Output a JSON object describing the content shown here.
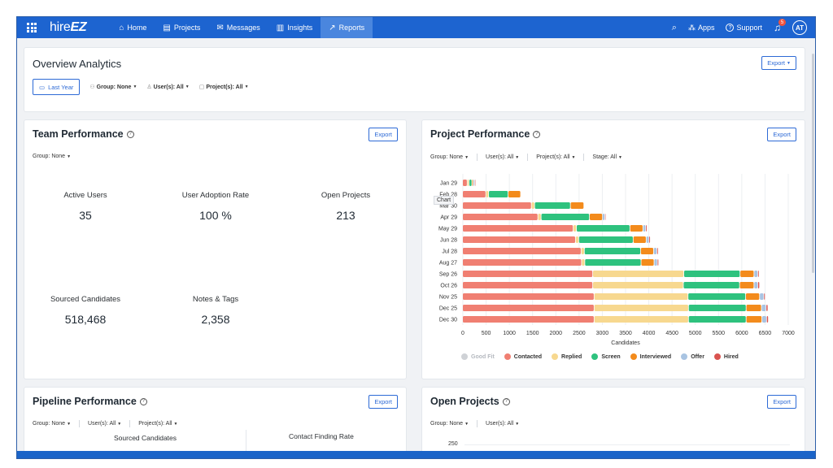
{
  "nav": {
    "logo_light": "hire",
    "logo_bold": "EZ",
    "items": [
      {
        "label": "Home",
        "icon": "home-icon",
        "glyph": "⌂",
        "active": false
      },
      {
        "label": "Projects",
        "icon": "briefcase-icon",
        "glyph": "▤",
        "active": false
      },
      {
        "label": "Messages",
        "icon": "mail-icon",
        "glyph": "✉",
        "active": false
      },
      {
        "label": "Insights",
        "icon": "bar-chart-icon",
        "glyph": "▥",
        "active": false
      },
      {
        "label": "Reports",
        "icon": "line-chart-icon",
        "glyph": "↗",
        "active": true
      }
    ],
    "apps_label": "Apps",
    "support_label": "Support",
    "notification_count": "5",
    "avatar_initials": "AT"
  },
  "overview": {
    "title": "Overview Analytics",
    "export_label": "Export",
    "date_button": "Last Year",
    "group_filter": "Group: None",
    "user_filter": "User(s): All",
    "project_filter": "Project(s): All"
  },
  "team_performance": {
    "title": "Team Performance",
    "export_label": "Export",
    "group_filter": "Group: None",
    "stats": [
      {
        "label": "Active Users",
        "value": "35"
      },
      {
        "label": "User Adoption Rate",
        "value": "100 %"
      },
      {
        "label": "Open Projects",
        "value": "213"
      },
      {
        "label": "Sourced Candidates",
        "value": "518,468"
      },
      {
        "label": "Notes & Tags",
        "value": "2,358"
      }
    ]
  },
  "project_performance": {
    "title": "Project Performance",
    "export_label": "Export",
    "filters": [
      "Group: None",
      "User(s): All",
      "Project(s): All",
      "Stage: All"
    ],
    "tooltip": "Chart"
  },
  "pipeline_performance": {
    "title": "Pipeline Performance",
    "export_label": "Export",
    "filters": [
      "Group: None",
      "User(s): All",
      "Project(s): All"
    ],
    "col1": "Sourced Candidates",
    "col2": "Contact Finding Rate"
  },
  "open_projects": {
    "title": "Open Projects",
    "export_label": "Export",
    "filters": [
      "Group: None",
      "User(s): All"
    ],
    "y_tick": "250"
  },
  "colors": {
    "nav": "#1d64d0",
    "good_fit": "#cfd2d6",
    "contacted": "#f07f72",
    "replied": "#f7d88f",
    "screen": "#2ec27e",
    "interviewed": "#f38b1c",
    "offer": "#a9c4e2",
    "hired": "#d9534f"
  },
  "chart_data": {
    "type": "bar",
    "orientation": "horizontal",
    "stacked": true,
    "categories": [
      "Jan 29",
      "Feb 28",
      "Mar 30",
      "Apr 29",
      "May 29",
      "Jun 28",
      "Jul 28",
      "Aug 27",
      "Sep 26",
      "Oct 26",
      "Nov 25",
      "Dec 25",
      "Dec 30"
    ],
    "series": [
      {
        "name": "Good Fit",
        "values": [
          0,
          0,
          0,
          0,
          0,
          0,
          0,
          0,
          0,
          0,
          0,
          0,
          0
        ]
      },
      {
        "name": "Contacted",
        "values": [
          100,
          500,
          1480,
          1620,
          2380,
          2430,
          2550,
          2560,
          2800,
          2800,
          2830,
          2830,
          2830
        ]
      },
      {
        "name": "Replied",
        "values": [
          40,
          60,
          70,
          70,
          70,
          70,
          70,
          70,
          1960,
          1950,
          2020,
          2030,
          2030
        ]
      },
      {
        "name": "Screen",
        "values": [
          60,
          420,
          770,
          1040,
          1150,
          1170,
          1210,
          1210,
          1210,
          1210,
          1240,
          1240,
          1240
        ]
      },
      {
        "name": "Interviewed",
        "values": [
          30,
          270,
          290,
          280,
          280,
          280,
          280,
          280,
          300,
          310,
          300,
          330,
          340
        ]
      },
      {
        "name": "Offer",
        "values": [
          30,
          0,
          0,
          50,
          60,
          60,
          70,
          70,
          80,
          80,
          90,
          100,
          100
        ]
      },
      {
        "name": "Hired",
        "values": [
          20,
          0,
          0,
          20,
          30,
          30,
          30,
          30,
          30,
          40,
          30,
          40,
          40
        ]
      }
    ],
    "xticks": [
      0,
      500,
      1000,
      1500,
      2000,
      2500,
      3000,
      3500,
      4000,
      4500,
      5000,
      5500,
      6000,
      6500,
      7000
    ],
    "xlim": [
      0,
      7000
    ],
    "xlabel": "Candidates",
    "grid": true,
    "legend_position": "bottom"
  }
}
